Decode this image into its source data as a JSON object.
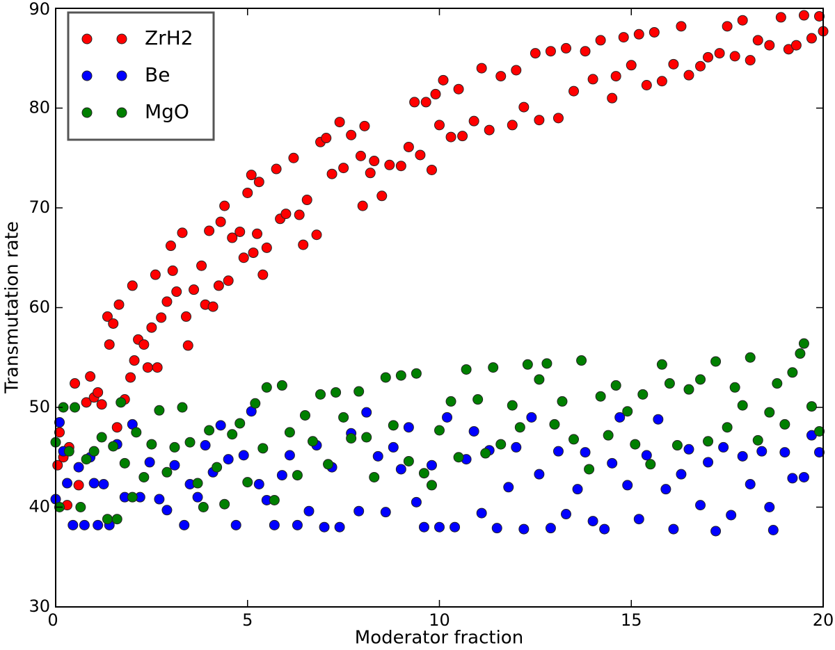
{
  "chart_data": {
    "type": "scatter",
    "xlabel": "Moderator fraction",
    "ylabel": "Transmutation rate",
    "xlim": [
      0,
      20
    ],
    "xticks": [
      0,
      5,
      10,
      15,
      20
    ],
    "ylim": [
      30,
      90
    ],
    "yticks": [
      30,
      40,
      50,
      60,
      70,
      80,
      90
    ],
    "legend": "upper left",
    "series": [
      {
        "name": "ZrH2",
        "color": "#ff0000",
        "x": [
          0.05,
          0.1,
          0.2,
          0.3,
          0.35,
          0.5,
          0.6,
          0.8,
          0.9,
          1.0,
          1.1,
          1.2,
          1.35,
          1.4,
          1.5,
          1.6,
          1.65,
          1.8,
          1.95,
          2.0,
          2.05,
          2.15,
          2.3,
          2.4,
          2.5,
          2.6,
          2.65,
          2.75,
          2.9,
          3.0,
          3.05,
          3.15,
          3.3,
          3.4,
          3.45,
          3.6,
          3.8,
          3.9,
          4.0,
          4.1,
          4.25,
          4.3,
          4.4,
          4.5,
          4.6,
          4.8,
          4.9,
          5.0,
          5.1,
          5.15,
          5.25,
          5.3,
          5.4,
          5.5,
          5.75,
          5.85,
          6.0,
          6.2,
          6.35,
          6.45,
          6.55,
          6.8,
          6.9,
          7.05,
          7.2,
          7.4,
          7.5,
          7.7,
          7.95,
          8.0,
          8.05,
          8.2,
          8.3,
          8.5,
          8.7,
          9.0,
          9.2,
          9.35,
          9.5,
          9.65,
          9.8,
          9.9,
          10.0,
          10.1,
          10.3,
          10.5,
          10.6,
          10.9,
          11.1,
          11.3,
          11.6,
          11.9,
          12.0,
          12.2,
          12.5,
          12.6,
          12.9,
          13.1,
          13.3,
          13.5,
          13.8,
          14.0,
          14.2,
          14.5,
          14.6,
          14.8,
          15.0,
          15.2,
          15.4,
          15.6,
          15.8,
          16.1,
          16.3,
          16.5,
          16.8,
          17.0,
          17.3,
          17.5,
          17.7,
          17.9,
          18.1,
          18.3,
          18.6,
          18.9,
          19.1,
          19.3,
          19.5,
          19.7,
          19.9,
          20.0
        ],
        "values": [
          44.2,
          47.5,
          45,
          40.2,
          46,
          52.4,
          42.2,
          50.5,
          53.1,
          51,
          51.5,
          50.3,
          59.1,
          56.3,
          58.4,
          48,
          60.3,
          50.8,
          53,
          62.2,
          54.7,
          56.8,
          56.3,
          54,
          58,
          63.3,
          54,
          59,
          60.6,
          66.2,
          63.7,
          61.6,
          67.5,
          59.1,
          56.2,
          61.8,
          64.2,
          60.3,
          67.7,
          60.1,
          62.2,
          68.6,
          70.2,
          62.7,
          67,
          67.6,
          65,
          71.5,
          73.3,
          65.5,
          67.4,
          72.6,
          63.3,
          66,
          73.9,
          68.9,
          69.4,
          75,
          69.3,
          66.3,
          70.8,
          67.3,
          76.6,
          77,
          73.4,
          78.6,
          74,
          77.3,
          75.2,
          70.2,
          78.2,
          73.5,
          74.7,
          71.2,
          74.3,
          74.2,
          76.1,
          80.6,
          75.3,
          80.6,
          73.8,
          81.4,
          78.3,
          82.8,
          77.1,
          81.9,
          77.2,
          78.7,
          84,
          77.8,
          83.2,
          78.3,
          83.8,
          80.1,
          85.5,
          78.8,
          85.7,
          79,
          86,
          81.7,
          85.7,
          82.9,
          86.8,
          81,
          83.2,
          87.1,
          84.3,
          87.4,
          82.3,
          87.6,
          82.7,
          84.4,
          88.2,
          83.3,
          84.2,
          85.1,
          85.5,
          88.2,
          85.2,
          88.8,
          84.8,
          86.8,
          86.3,
          89.1,
          85.9,
          86.3,
          89.3,
          87,
          89.2,
          87.7
        ]
      },
      {
        "name": "Be",
        "color": "#0000ff",
        "x": [
          0,
          0.1,
          0.2,
          0.3,
          0.45,
          0.6,
          0.75,
          0.9,
          1.0,
          1.1,
          1.25,
          1.4,
          1.6,
          1.8,
          2.0,
          2.2,
          2.45,
          2.7,
          2.9,
          3.1,
          3.35,
          3.5,
          3.7,
          3.9,
          4.1,
          4.3,
          4.5,
          4.7,
          4.9,
          5.1,
          5.3,
          5.5,
          5.7,
          5.9,
          6.1,
          6.3,
          6.6,
          6.8,
          7.0,
          7.2,
          7.4,
          7.7,
          7.9,
          8.1,
          8.4,
          8.6,
          8.8,
          9.0,
          9.2,
          9.4,
          9.6,
          9.8,
          10.0,
          10.2,
          10.4,
          10.7,
          10.9,
          11.1,
          11.3,
          11.5,
          11.8,
          12.0,
          12.2,
          12.4,
          12.6,
          12.9,
          13.1,
          13.3,
          13.6,
          13.8,
          14.0,
          14.3,
          14.5,
          14.7,
          14.9,
          15.2,
          15.4,
          15.7,
          15.9,
          16.1,
          16.3,
          16.5,
          16.8,
          17.0,
          17.2,
          17.4,
          17.6,
          17.9,
          18.1,
          18.4,
          18.6,
          18.7,
          19.0,
          19.2,
          19.5,
          19.7,
          19.9
        ],
        "values": [
          40.8,
          48.5,
          45.6,
          42.4,
          38.2,
          44,
          38.2,
          45,
          42.4,
          38.2,
          42.3,
          38.2,
          46.3,
          41,
          48.3,
          41,
          44.5,
          40.8,
          39.7,
          44.2,
          38.2,
          42.3,
          41,
          46.2,
          43.5,
          48.2,
          44.8,
          38.2,
          45.2,
          49.6,
          42.3,
          40.7,
          38.2,
          43.2,
          45.2,
          38.2,
          39.6,
          46.2,
          38,
          44,
          38,
          47.4,
          39.6,
          49.5,
          45.1,
          39.5,
          46,
          43.8,
          48,
          40.5,
          38,
          44.2,
          38,
          49,
          38,
          44.8,
          47.6,
          39.4,
          45.7,
          37.9,
          42,
          46,
          37.8,
          49,
          43.3,
          37.9,
          45.6,
          39.3,
          41.8,
          45.5,
          38.6,
          37.8,
          44.4,
          49,
          42.2,
          38.8,
          45.2,
          48.8,
          41.8,
          37.8,
          43.3,
          45.8,
          40.2,
          44.5,
          37.6,
          46,
          39.2,
          45.1,
          42.3,
          45.6,
          40,
          37.7,
          45.5,
          42.9,
          43,
          47.2,
          45.5
        ]
      },
      {
        "name": "MgO",
        "color": "#007f00",
        "x": [
          0,
          0.1,
          0.2,
          0.35,
          0.5,
          0.65,
          0.8,
          1.0,
          1.2,
          1.35,
          1.5,
          1.6,
          1.7,
          1.8,
          2.0,
          2.1,
          2.3,
          2.5,
          2.7,
          2.9,
          3.1,
          3.3,
          3.5,
          3.7,
          3.85,
          4.0,
          4.2,
          4.4,
          4.6,
          4.8,
          5.0,
          5.2,
          5.4,
          5.5,
          5.7,
          5.9,
          6.1,
          6.3,
          6.5,
          6.7,
          6.9,
          7.1,
          7.3,
          7.5,
          7.7,
          7.9,
          8.1,
          8.3,
          8.6,
          8.8,
          9.0,
          9.2,
          9.4,
          9.6,
          9.8,
          10.0,
          10.3,
          10.5,
          10.7,
          11.0,
          11.2,
          11.4,
          11.6,
          11.9,
          12.1,
          12.3,
          12.6,
          12.8,
          13.0,
          13.2,
          13.5,
          13.7,
          13.9,
          14.2,
          14.4,
          14.6,
          14.9,
          15.1,
          15.3,
          15.5,
          15.8,
          16.0,
          16.2,
          16.5,
          16.8,
          17.0,
          17.2,
          17.5,
          17.7,
          17.9,
          18.1,
          18.3,
          18.6,
          18.8,
          19.0,
          19.2,
          19.4,
          19.5,
          19.7,
          19.9
        ],
        "values": [
          46.5,
          40,
          50,
          45.6,
          50,
          40,
          44.8,
          45.6,
          47,
          38.8,
          46.1,
          38.8,
          50.5,
          44.4,
          41,
          47.5,
          43,
          46.3,
          49.7,
          43.5,
          46,
          50,
          46.5,
          42.4,
          40,
          47.7,
          44,
          40.3,
          47.3,
          48.4,
          42.5,
          50.4,
          45.9,
          52,
          40.7,
          52.2,
          47.5,
          43.2,
          49.2,
          46.6,
          51.3,
          44.3,
          51.5,
          49,
          46.9,
          51.6,
          47,
          43,
          53,
          48.2,
          53.2,
          44.6,
          53.4,
          43.4,
          42.2,
          47.7,
          50.6,
          45,
          53.8,
          50.8,
          45.4,
          54,
          46.3,
          50.2,
          48,
          54.3,
          52.8,
          54.4,
          48.3,
          50.6,
          46.8,
          54.7,
          43.8,
          51.1,
          47.2,
          52.2,
          49.6,
          46.3,
          51.3,
          44.3,
          54.3,
          52.4,
          46.2,
          51.8,
          52.8,
          46.6,
          54.6,
          48,
          52,
          50.2,
          55,
          46.7,
          49.5,
          52.4,
          48.3,
          53.5,
          55.4,
          56.4,
          50.1,
          47.6
        ]
      }
    ]
  }
}
